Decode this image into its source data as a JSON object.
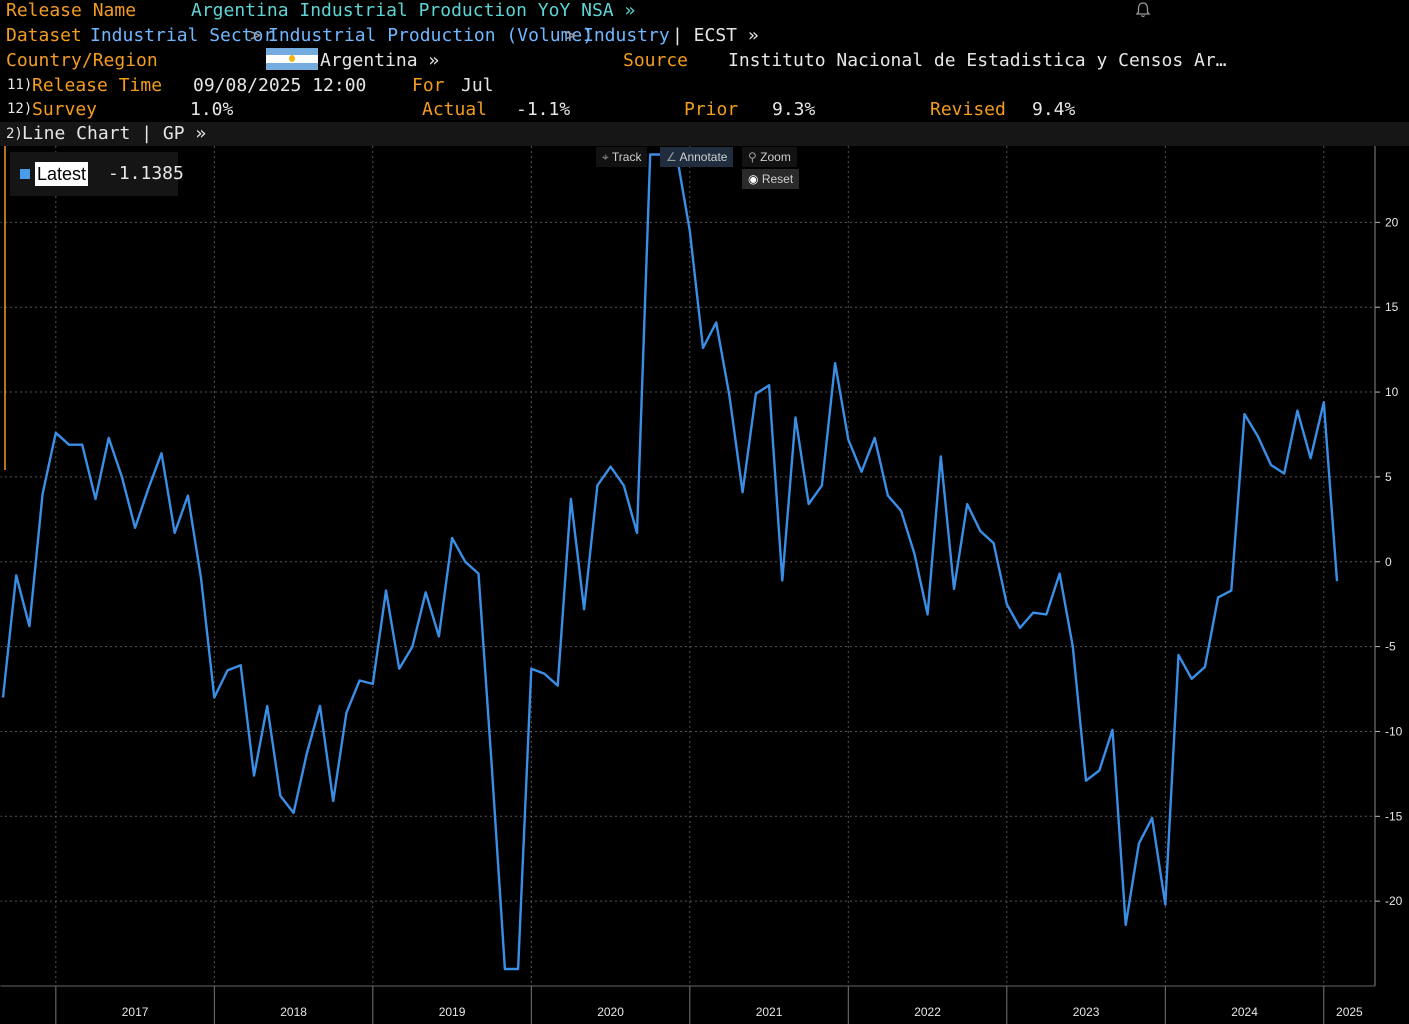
{
  "header": {
    "release_name_label": "Release Name",
    "release_name_value": "Argentina Industrial Production YoY NSA »",
    "dataset_label": "Dataset",
    "dataset_path": [
      "Industrial Sector",
      "Industrial Production (Volume)",
      "Industry"
    ],
    "dataset_sep": ">",
    "dataset_suffix": "| ECST »",
    "country_label": "Country/Region",
    "country_value": "Argentina »",
    "source_label": "Source",
    "source_value": "Instituto Nacional de Estadistica y Censos Ar…",
    "release_time_num": "11)",
    "release_time_label": "Release Time",
    "release_time_value": "09/08/2025 12:00",
    "for_label": "For",
    "for_value": "Jul",
    "survey_num": "12)",
    "survey_label": "Survey",
    "survey_value": "1.0%",
    "actual_label": "Actual",
    "actual_value": "-1.1%",
    "prior_label": "Prior",
    "prior_value": "9.3%",
    "revised_label": "Revised",
    "revised_value": "9.4%"
  },
  "chart_bar": {
    "num": "2)",
    "label": "Line Chart | GP »"
  },
  "toolbar": {
    "track": "Track",
    "annotate": "Annotate",
    "zoom": "Zoom",
    "reset": "Reset"
  },
  "legend": {
    "label": "Latest",
    "value": "-1.1385"
  },
  "colors": {
    "series": "#3a8ee6",
    "label_orange": "#f39c1e",
    "link_blue": "#6fb7ff",
    "background": "#000000"
  },
  "chart_data": {
    "type": "line",
    "series": [
      {
        "values": [
          [
            "2016-09",
            -8.0
          ],
          [
            "2016-10",
            -0.8
          ],
          [
            "2016-11",
            -3.8
          ],
          [
            "2016-12",
            4.0
          ],
          [
            "2017-01",
            7.6
          ],
          [
            "2017-02",
            6.9
          ],
          [
            "2017-03",
            6.9
          ],
          [
            "2017-04",
            3.7
          ],
          [
            "2017-05",
            7.3
          ],
          [
            "2017-06",
            5.0
          ],
          [
            "2017-07",
            2.0
          ],
          [
            "2017-08",
            4.3
          ],
          [
            "2017-09",
            6.4
          ],
          [
            "2017-10",
            1.7
          ],
          [
            "2017-11",
            3.9
          ],
          [
            "2017-12",
            -1.0
          ],
          [
            "2018-01",
            -8.0
          ],
          [
            "2018-02",
            -6.4
          ],
          [
            "2018-03",
            -6.1
          ],
          [
            "2018-04",
            -12.6
          ],
          [
            "2018-05",
            -8.5
          ],
          [
            "2018-06",
            -13.8
          ],
          [
            "2018-07",
            -14.8
          ],
          [
            "2018-08",
            -11.3
          ],
          [
            "2018-09",
            -8.5
          ],
          [
            "2018-10",
            -14.1
          ],
          [
            "2018-11",
            -8.9
          ],
          [
            "2018-12",
            -7.0
          ],
          [
            "2019-01",
            -7.2
          ],
          [
            "2019-02",
            -1.7
          ],
          [
            "2019-03",
            -6.3
          ],
          [
            "2019-04",
            -5.0
          ],
          [
            "2019-05",
            -1.8
          ],
          [
            "2019-06",
            -4.4
          ],
          [
            "2019-07",
            1.4
          ],
          [
            "2019-08",
            0.0
          ],
          [
            "2019-09",
            -0.7
          ],
          [
            "2019-10",
            -12.0
          ],
          [
            "2019-11",
            -24.0
          ],
          [
            "2019-12",
            -24.0
          ],
          [
            "2020-01",
            -6.3
          ],
          [
            "2020-02",
            -6.6
          ],
          [
            "2020-03",
            -7.3
          ],
          [
            "2020-04",
            3.7
          ],
          [
            "2020-05",
            -2.8
          ],
          [
            "2020-06",
            4.5
          ],
          [
            "2020-07",
            5.6
          ],
          [
            "2020-08",
            4.5
          ],
          [
            "2020-09",
            1.7
          ],
          [
            "2020-10",
            24.0
          ],
          [
            "2020-11",
            24.0
          ],
          [
            "2020-12",
            24.0
          ],
          [
            "2021-01",
            19.5
          ],
          [
            "2021-02",
            12.6
          ],
          [
            "2021-03",
            14.1
          ],
          [
            "2021-04",
            9.8
          ],
          [
            "2021-05",
            4.1
          ],
          [
            "2021-06",
            9.9
          ],
          [
            "2021-07",
            10.4
          ],
          [
            "2021-08",
            -1.1
          ],
          [
            "2021-09",
            8.5
          ],
          [
            "2021-10",
            3.4
          ],
          [
            "2021-11",
            4.5
          ],
          [
            "2021-12",
            11.7
          ],
          [
            "2022-01",
            7.2
          ],
          [
            "2022-02",
            5.3
          ],
          [
            "2022-03",
            7.3
          ],
          [
            "2022-04",
            3.9
          ],
          [
            "2022-05",
            3.0
          ],
          [
            "2022-06",
            0.5
          ],
          [
            "2022-07",
            -3.1
          ],
          [
            "2022-08",
            6.2
          ],
          [
            "2022-09",
            -1.6
          ],
          [
            "2022-10",
            3.4
          ],
          [
            "2022-11",
            1.8
          ],
          [
            "2022-12",
            1.1
          ],
          [
            "2023-01",
            -2.5
          ],
          [
            "2023-02",
            -3.9
          ],
          [
            "2023-03",
            -3.0
          ],
          [
            "2023-04",
            -3.1
          ],
          [
            "2023-05",
            -0.7
          ],
          [
            "2023-06",
            -5.0
          ],
          [
            "2023-07",
            -12.9
          ],
          [
            "2023-08",
            -12.3
          ],
          [
            "2023-09",
            -9.9
          ],
          [
            "2023-10",
            -21.4
          ],
          [
            "2023-11",
            -16.6
          ],
          [
            "2023-12",
            -15.1
          ],
          [
            "2024-01",
            -20.2
          ],
          [
            "2024-02",
            -5.5
          ],
          [
            "2024-03",
            -6.9
          ],
          [
            "2024-04",
            -6.2
          ],
          [
            "2024-05",
            -2.1
          ],
          [
            "2024-06",
            -1.7
          ],
          [
            "2024-07",
            8.7
          ],
          [
            "2024-08",
            7.4
          ],
          [
            "2024-09",
            5.7
          ],
          [
            "2024-10",
            5.2
          ],
          [
            "2024-11",
            8.9
          ],
          [
            "2024-12",
            6.1
          ],
          [
            "2025-01",
            9.4
          ],
          [
            "2025-02",
            -1.1385
          ]
        ]
      }
    ],
    "x_tick_labels": [
      "2017",
      "2018",
      "2019",
      "2020",
      "2021",
      "2022",
      "2023",
      "2024",
      "2025"
    ],
    "y_ticks": [
      20,
      15,
      10,
      5,
      0,
      -5,
      -10,
      -15,
      -20
    ],
    "ylim": [
      -25,
      24.5
    ],
    "xlim": [
      "2016-09",
      "2025-03"
    ],
    "grid": true,
    "y_axis_side": "right",
    "last_value": -1.1385
  }
}
